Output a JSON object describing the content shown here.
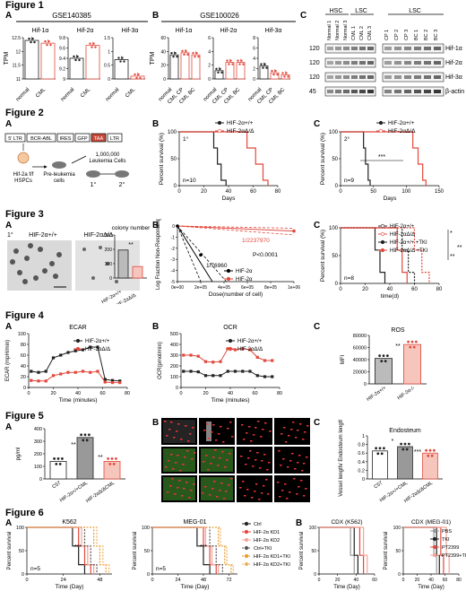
{
  "figures": [
    {
      "title": "Figure 1"
    },
    {
      "title": "Figure 2"
    },
    {
      "title": "Figure 3"
    },
    {
      "title": "Figure 4"
    },
    {
      "title": "Figure 5"
    },
    {
      "title": "Figure 6"
    }
  ],
  "fig1": {
    "A_dataset": "GSE140385",
    "B_dataset": "GSE100026",
    "A_ylabel": "TPM",
    "B_ylabel": "TPM",
    "genes": [
      "Hif-1α",
      "Hif-2α",
      "Hif-3α"
    ],
    "A_groups": [
      "normal",
      "CML"
    ],
    "B_groups": [
      "normal",
      "CML CP",
      "CML BC"
    ],
    "C_headers": {
      "hsc": "HSC",
      "lsc1": "LSC",
      "lsc2": "LSC"
    },
    "C_lanes_left": [
      "Normal 1",
      "Normal 2",
      "Normal 3",
      "CML 1",
      "CML 2",
      "CML 3"
    ],
    "C_lanes_right": [
      "CP 1",
      "CP 2",
      "CP 3",
      "BC 1",
      "BC 2",
      "BC 3"
    ],
    "C_mw": [
      "120",
      "120",
      "120",
      "45"
    ],
    "C_proteins": [
      "Hif-1α",
      "Hif-2α",
      "Hif-3α",
      "β-actin"
    ]
  },
  "fig2": {
    "construct": [
      "5' LTR",
      "BCR-ABL",
      "IRES",
      "GFP",
      "TAA",
      "LTR"
    ],
    "donor_label": "Hif-2a f/f",
    "donor_label2": "HSPCs",
    "pre_label": "Pre-leukemia",
    "pre_label2": "cells",
    "cells_count": "1,000,000",
    "cells_label": "Leukemia Cells",
    "transplant_1": "1°",
    "transplant_2": "2°",
    "B_legend": [
      "HIF-2α+/+",
      "HIF-2αΔ/Δ"
    ],
    "B_mark": "1°",
    "B_n": "n=10",
    "B_ylabel": "Percent survival (%)",
    "B_xlabel": "Days",
    "C_legend": [
      "HIF-2α+/+",
      "HIF-2αΔ/Δ"
    ],
    "C_mark": "2°",
    "C_n": "n=9",
    "C_sig": "***",
    "C_ylabel": "Percent survival (%)",
    "C_xlabel": "Days"
  },
  "fig3": {
    "A_mark": "1°",
    "A_labels": [
      "HIF-2α+/+",
      "HIF-2αΔ/Δ"
    ],
    "A_bar_title": "colony number",
    "A_sig": "**",
    "B_ylabel": "Log Fraction Non-Responding",
    "B_xlabel": "Dose(number of cell)",
    "B_freq1": "1/2237970",
    "B_freq2": "1/76960",
    "B_p": "P<0.0001",
    "B_legend": [
      "HIF-2α",
      "HIF-2α"
    ],
    "C_legend": [
      "HIF-2α+/+",
      "HIF-2αΔ/Δ",
      "HIF-2α+/+ +TKI",
      "HIF-2αΔ/Δ +TKI"
    ],
    "C_sig": [
      "*",
      "**",
      "**"
    ],
    "C_n": "n=8",
    "C_ylabel": "Percent survival (%)",
    "C_xlabel": "time(d)"
  },
  "fig4": {
    "A_title": "ECAR",
    "A_ylabel": "ECAR (mpH/min)",
    "A_xlabel": "Time (minutes)",
    "A_legend": [
      "HIF-2α+/+",
      "HIF-2αΔ/Δ"
    ],
    "B_title": "OCR",
    "B_ylabel": "OCR(pmol/min)",
    "B_xlabel": "Time (minutes)",
    "B_legend": [
      "HIF-2α+/+",
      "HIF-2αΔ/Δ"
    ],
    "C_title": "ROS",
    "C_ylabel": "MFI",
    "C_sig": "**",
    "C_groups": [
      "HIF-2α+/+",
      "HIF-2α-/-"
    ]
  },
  "fig5": {
    "A_ylabel": "pg/ml",
    "A_groups": [
      "C57",
      "HIF-2α+/+CML",
      "HIF-2αΔ/ΔCML"
    ],
    "A_sig": [
      "**",
      "**"
    ],
    "C_title": "Endosteum",
    "C_ylabel": "Vessel length/ Endosteum length",
    "C_groups": [
      "C57",
      "HIF-2α+/+CML",
      "HIF-2αΔ/ΔCML"
    ],
    "C_sig": [
      "*",
      "***"
    ]
  },
  "fig6": {
    "A1_title": "K562",
    "A2_title": "MEG-01",
    "A_legend": [
      "Ctrl",
      "HIF-2α KD1",
      "HIF-2α KD2",
      "Ctrl+TKI",
      "HIF-2α KD1+TKI",
      "HIF-2α KD2+TKI"
    ],
    "A1_n": "n=5",
    "A2_n": "n=5",
    "A_ylabel": "Percent survival",
    "A_xlabel": "Time (Day)",
    "B1_title": "CDX (K562)",
    "B2_title": "CDX (MEG-01)",
    "B_legend": [
      "PBS",
      "TKI",
      "PT2399",
      "PT2399+TKI"
    ],
    "B_ylabel": "Percent survival",
    "B_xlabel": "Time (Day)"
  },
  "colors": {
    "red": "#e2483c",
    "black": "#222222",
    "gray": "#9a9a9a",
    "lightred": "#f2a49a",
    "orange": "#e89a2a"
  },
  "chart_data": [
    {
      "id": "fig1A-hif1a",
      "type": "bar",
      "categories": [
        "normal",
        "CML"
      ],
      "values": [
        12.4,
        12.3
      ],
      "ylim": [
        11.0,
        12.5
      ],
      "ylabel": "TPM",
      "title": "Hif-1α"
    },
    {
      "id": "fig1A-hif2a",
      "type": "bar",
      "categories": [
        "normal",
        "CML"
      ],
      "values": [
        9.4,
        9.65
      ],
      "ylim": [
        9.0,
        9.8
      ],
      "title": "Hif-2α"
    },
    {
      "id": "fig1A-hif3a",
      "type": "bar",
      "categories": [
        "normal",
        "CML"
      ],
      "values": [
        0.7,
        0.1
      ],
      "ylim": [
        0.0,
        1.5
      ],
      "title": "Hif-3α"
    },
    {
      "id": "fig1B-hif1a",
      "type": "bar",
      "categories": [
        "normal",
        "CML CP",
        "CML BC"
      ],
      "values": [
        35,
        38,
        35
      ],
      "ylim": [
        0,
        60
      ],
      "ylabel": "TPM",
      "title": "Hif-1α"
    },
    {
      "id": "fig1B-hif2a",
      "type": "bar",
      "categories": [
        "normal",
        "CML CP",
        "CML BC"
      ],
      "values": [
        1.2,
        2.4,
        2.4
      ],
      "ylim": [
        0,
        6
      ],
      "title": "Hif-2α"
    },
    {
      "id": "fig1B-hif3a",
      "type": "bar",
      "categories": [
        "normal",
        "CML CP",
        "CML BC"
      ],
      "values": [
        2.5,
        1.2,
        0.8
      ],
      "ylim": [
        0,
        8
      ],
      "title": "Hif-3α"
    },
    {
      "id": "fig2B",
      "type": "line",
      "x_range": [
        0,
        80
      ],
      "ylim": [
        0,
        100
      ],
      "xticks": [
        0,
        20,
        40,
        60,
        80
      ],
      "yticks": [
        0,
        50,
        100
      ],
      "series": [
        {
          "name": "HIF-2α+/+",
          "x": [
            0,
            25,
            28,
            31,
            34,
            38
          ],
          "y": [
            100,
            100,
            70,
            40,
            10,
            0
          ]
        },
        {
          "name": "HIF-2αΔ/Δ",
          "x": [
            0,
            45,
            55,
            62,
            68,
            72
          ],
          "y": [
            100,
            100,
            70,
            40,
            10,
            0
          ]
        }
      ]
    },
    {
      "id": "fig2C",
      "type": "line",
      "x_range": [
        0,
        150
      ],
      "ylim": [
        0,
        100
      ],
      "xticks": [
        0,
        50,
        100,
        150
      ],
      "yticks": [
        0,
        50,
        100
      ],
      "series": [
        {
          "name": "HIF-2α+/+",
          "x": [
            0,
            30,
            35,
            38,
            42,
            45
          ],
          "y": [
            100,
            100,
            70,
            40,
            10,
            0
          ]
        },
        {
          "name": "HIF-2αΔ/Δ",
          "x": [
            0,
            100,
            110,
            118,
            125,
            130
          ],
          "y": [
            100,
            100,
            70,
            40,
            10,
            0
          ]
        }
      ]
    },
    {
      "id": "fig3A",
      "type": "bar",
      "categories": [
        "HIF-2α+/+",
        "HIF-2αΔ/Δ"
      ],
      "values": [
        195,
        80
      ],
      "ylim": [
        0,
        300
      ],
      "yticks": [
        0,
        100,
        200,
        300
      ]
    },
    {
      "id": "fig3B",
      "type": "line",
      "x_range": [
        0,
        1000000
      ],
      "ylim": [
        -5,
        0
      ],
      "xticks": [
        "0e+00",
        "2e+05",
        "4e+05",
        "6e+05",
        "8e+05",
        "1e+06"
      ],
      "yticks": [
        0,
        -1,
        -2,
        -3,
        -4,
        -5
      ]
    },
    {
      "id": "fig3C",
      "type": "line",
      "x_range": [
        0,
        80
      ],
      "ylim": [
        0,
        100
      ],
      "xticks": [
        0,
        20,
        40,
        60,
        80
      ],
      "yticks": [
        0,
        50,
        100
      ],
      "series": [
        {
          "name": "HIF-2α+/+",
          "x": [
            0,
            25,
            28,
            32,
            36
          ],
          "y": [
            100,
            100,
            60,
            20,
            0
          ]
        },
        {
          "name": "HIF-2αΔ/Δ",
          "x": [
            0,
            42,
            46,
            50,
            54
          ],
          "y": [
            100,
            100,
            60,
            20,
            0
          ]
        },
        {
          "name": "HIF-2α+/+ +TKI",
          "x": [
            0,
            45,
            50,
            55,
            60
          ],
          "y": [
            100,
            100,
            60,
            20,
            0
          ]
        },
        {
          "name": "HIF-2αΔ/Δ +TKI",
          "x": [
            0,
            55,
            60,
            66,
            72
          ],
          "y": [
            100,
            100,
            60,
            20,
            0
          ]
        }
      ]
    },
    {
      "id": "fig4A",
      "type": "line",
      "x_range": [
        0,
        80
      ],
      "ylim": [
        0,
        100
      ],
      "xticks": [
        0,
        20,
        40,
        60,
        80
      ],
      "yticks": [
        0,
        20,
        40,
        60,
        80,
        100
      ],
      "series": [
        {
          "name": "HIF-2α+/+",
          "x": [
            2,
            8,
            14,
            20,
            26,
            32,
            38,
            44,
            50,
            56,
            62,
            68,
            74
          ],
          "y": [
            30,
            28,
            30,
            55,
            60,
            65,
            68,
            70,
            75,
            75,
            15,
            13,
            12
          ]
        },
        {
          "name": "HIF-2αΔ/Δ",
          "x": [
            2,
            8,
            14,
            20,
            26,
            32,
            38,
            44,
            50,
            56,
            62,
            68,
            74
          ],
          "y": [
            13,
            12,
            12,
            22,
            25,
            28,
            28,
            30,
            28,
            30,
            10,
            9,
            9
          ]
        }
      ]
    },
    {
      "id": "fig4B",
      "type": "line",
      "x_range": [
        0,
        80
      ],
      "ylim": [
        0,
        500
      ],
      "xticks": [
        0,
        20,
        40,
        60,
        80
      ],
      "yticks": [
        0,
        100,
        200,
        300,
        400,
        500
      ],
      "series": [
        {
          "name": "HIF-2α+/+",
          "x": [
            2,
            8,
            14,
            20,
            26,
            32,
            38,
            44,
            50,
            56,
            62,
            68,
            74
          ],
          "y": [
            150,
            150,
            145,
            110,
            110,
            110,
            150,
            150,
            150,
            150,
            110,
            100,
            100
          ]
        },
        {
          "name": "HIF-2αΔ/Δ",
          "x": [
            2,
            8,
            14,
            20,
            26,
            32,
            38,
            44,
            50,
            56,
            62,
            68,
            74
          ],
          "y": [
            300,
            300,
            290,
            240,
            235,
            240,
            360,
            350,
            360,
            350,
            280,
            250,
            250
          ]
        }
      ]
    },
    {
      "id": "fig4C",
      "type": "bar",
      "categories": [
        "HIF-2α+/+",
        "HIF-2α-/-"
      ],
      "values": [
        42000,
        65000
      ],
      "ylim": [
        0,
        80000
      ],
      "yticks": [
        0,
        20000,
        40000,
        60000,
        80000
      ]
    },
    {
      "id": "fig5A",
      "type": "bar",
      "categories": [
        "C57",
        "HIF-2α+/+CML",
        "HIF-2αΔ/ΔCML"
      ],
      "values": [
        140,
        330,
        140
      ],
      "ylim": [
        0,
        400
      ],
      "yticks": [
        0,
        100,
        200,
        300,
        400
      ]
    },
    {
      "id": "fig5C",
      "type": "bar",
      "categories": [
        "C57",
        "HIF-2α+/+CML",
        "HIF-2αΔ/ΔCML"
      ],
      "values": [
        0.65,
        0.75,
        0.6
      ],
      "ylim": [
        0,
        1.0
      ],
      "yticks": [
        0,
        0.2,
        0.4,
        0.6,
        0.8,
        1.0
      ]
    },
    {
      "id": "fig6A-K562",
      "type": "line",
      "x_range": [
        0,
        56
      ],
      "ylim": [
        0,
        100
      ],
      "xticks": [
        0,
        24,
        48
      ],
      "yticks": [
        0,
        50,
        100
      ]
    },
    {
      "id": "fig6A-MEG01",
      "type": "line",
      "x_range": [
        0,
        80
      ],
      "ylim": [
        0,
        100
      ],
      "xticks": [
        0,
        24,
        48,
        72
      ],
      "yticks": [
        0,
        50,
        100
      ]
    },
    {
      "id": "fig6B-K562",
      "type": "line",
      "x_range": [
        0,
        60
      ],
      "ylim": [
        0,
        100
      ],
      "xticks": [
        0,
        20,
        40,
        60
      ],
      "yticks": [
        0,
        50,
        100
      ]
    },
    {
      "id": "fig6B-MEG01",
      "type": "line",
      "x_range": [
        0,
        80
      ],
      "ylim": [
        0,
        100
      ],
      "xticks": [
        0,
        20,
        40,
        60,
        80
      ],
      "yticks": [
        0,
        50,
        100
      ]
    }
  ]
}
